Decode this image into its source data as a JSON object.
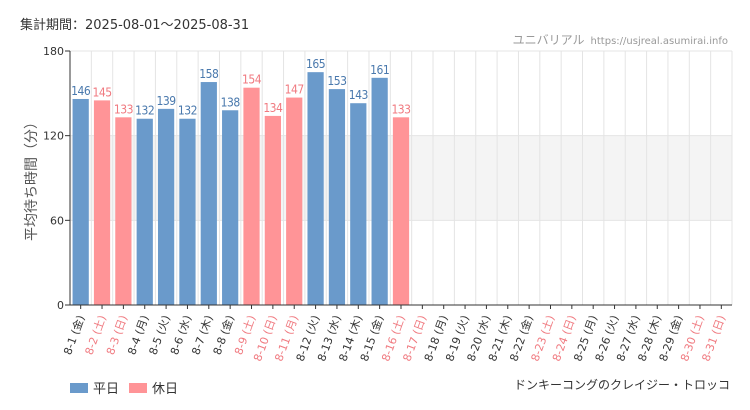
{
  "header": {
    "period": "集計期間：2025-08-01～2025-08-31",
    "site_name": "ユニバリアル",
    "site_url": "https://usjreal.asumirai.info"
  },
  "footer": {
    "attraction": "ドンキーコングのクレイジー・トロッコ"
  },
  "colors": {
    "weekday": "#6a9acb",
    "holiday": "#ff9497",
    "weekday_label": "#4a79ad",
    "holiday_label": "#f07a80",
    "band": "#f4f4f4",
    "grid": "#e4e4e4",
    "axis": "#333333"
  },
  "chart_data": {
    "type": "bar",
    "ylabel": "平均待ち時間（分）",
    "ylim": [
      0,
      180
    ],
    "yticks": [
      0,
      60,
      120,
      180
    ],
    "shaded_band": [
      60,
      120
    ],
    "series": [
      {
        "name": "平日",
        "color": "#6a9acb"
      },
      {
        "name": "休日",
        "color": "#ff9497"
      }
    ],
    "categories": [
      "8-1 (金)",
      "8-2 (土)",
      "8-3 (日)",
      "8-4 (月)",
      "8-5 (火)",
      "8-6 (水)",
      "8-7 (木)",
      "8-8 (金)",
      "8-9 (土)",
      "8-10 (日)",
      "8-11 (月)",
      "8-12 (火)",
      "8-13 (水)",
      "8-14 (木)",
      "8-15 (金)",
      "8-16 (土)",
      "8-17 (日)",
      "8-18 (月)",
      "8-19 (火)",
      "8-20 (水)",
      "8-21 (木)",
      "8-22 (金)",
      "8-23 (土)",
      "8-24 (日)",
      "8-25 (月)",
      "8-26 (火)",
      "8-27 (水)",
      "8-28 (木)",
      "8-29 (金)",
      "8-30 (土)",
      "8-31 (日)"
    ],
    "holiday": [
      false,
      true,
      true,
      false,
      false,
      false,
      false,
      false,
      true,
      true,
      true,
      false,
      false,
      false,
      false,
      true,
      true,
      false,
      false,
      false,
      false,
      false,
      true,
      true,
      false,
      false,
      false,
      false,
      false,
      true,
      true
    ],
    "values": [
      146,
      145,
      133,
      132,
      139,
      132,
      158,
      138,
      154,
      134,
      147,
      165,
      153,
      143,
      161,
      133,
      null,
      null,
      null,
      null,
      null,
      null,
      null,
      null,
      null,
      null,
      null,
      null,
      null,
      null,
      null
    ]
  }
}
